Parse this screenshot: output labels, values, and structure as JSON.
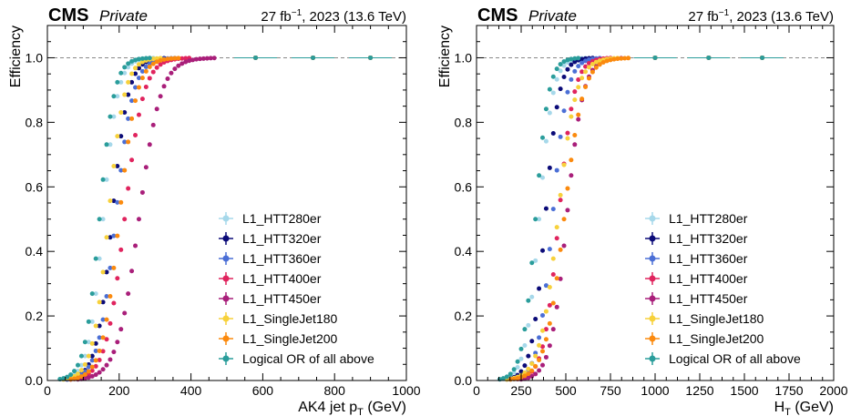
{
  "header": {
    "experiment": "CMS",
    "status": "Private",
    "lumi_value": "27",
    "lumi_unit": "fb",
    "lumi_exp": "−1",
    "lumi_rest": ", 2023 (13.6 TeV)"
  },
  "colors": {
    "L1_HTT280er": "#a6d8ea",
    "L1_HTT320er": "#0b0b78",
    "L1_HTT360er": "#4b6fd6",
    "L1_HTT400er": "#e0245e",
    "L1_HTT450er": "#a91f7a",
    "L1_SingleJet180": "#f7d13b",
    "L1_SingleJet200": "#fb8a0e",
    "Logical OR of all above": "#2a9d9b",
    "reference_line": "#888888"
  },
  "legend_labels": [
    "L1_HTT280er",
    "L1_HTT320er",
    "L1_HTT360er",
    "L1_HTT400er",
    "L1_HTT450er",
    "L1_SingleJet180",
    "L1_SingleJet200",
    "Logical OR of all above"
  ],
  "chart_data": [
    {
      "type": "scatter",
      "xlabel_main": "AK4 jet p",
      "xlabel_sub": "T",
      "xlabel_unit": " (GeV)",
      "ylabel": "Efficiency",
      "xlim": [
        0,
        1000
      ],
      "ylim": [
        0,
        1.1
      ],
      "xticks": [
        0,
        200,
        400,
        600,
        800,
        1000
      ],
      "yticks": [
        0.0,
        0.2,
        0.4,
        0.6,
        0.8,
        1.0
      ],
      "reference_line": 1.0,
      "legend_position": "lower-right",
      "grid": false,
      "tail_x": [
        580,
        740,
        900
      ],
      "series": [
        {
          "name": "L1_HTT280er",
          "x50": 155,
          "width": 20
        },
        {
          "name": "L1_HTT320er",
          "x50": 180,
          "width": 22
        },
        {
          "name": "L1_HTT360er",
          "x50": 190,
          "width": 24
        },
        {
          "name": "L1_HTT400er",
          "x50": 215,
          "width": 26
        },
        {
          "name": "L1_HTT450er",
          "x50": 255,
          "width": 30
        },
        {
          "name": "L1_SingleJet180",
          "x50": 170,
          "width": 22
        },
        {
          "name": "L1_SingleJet200",
          "x50": 200,
          "width": 24
        },
        {
          "name": "Logical OR of all above",
          "x50": 145,
          "width": 20
        }
      ]
    },
    {
      "type": "scatter",
      "xlabel_main": "H",
      "xlabel_sub": "T",
      "xlabel_unit": " (GeV)",
      "ylabel": "Efficiency",
      "xlim": [
        0,
        2000
      ],
      "ylim": [
        0,
        1.1
      ],
      "xticks": [
        0,
        250,
        500,
        750,
        1000,
        1250,
        1500,
        1750,
        2000
      ],
      "yticks": [
        0.0,
        0.2,
        0.4,
        0.6,
        0.8,
        1.0
      ],
      "reference_line": 1.0,
      "legend_position": "lower-right",
      "grid": false,
      "tail_x": [
        1000,
        1300,
        1600
      ],
      "series": [
        {
          "name": "L1_HTT280er",
          "x50": 350,
          "width": 38
        },
        {
          "name": "L1_HTT320er",
          "x50": 385,
          "width": 38
        },
        {
          "name": "L1_HTT360er",
          "x50": 425,
          "width": 40
        },
        {
          "name": "L1_HTT400er",
          "x50": 460,
          "width": 42
        },
        {
          "name": "L1_HTT450er",
          "x50": 505,
          "width": 45
        },
        {
          "name": "L1_SingleJet180",
          "x50": 455,
          "width": 50
        },
        {
          "name": "L1_SingleJet200",
          "x50": 490,
          "width": 52
        },
        {
          "name": "Logical OR of all above",
          "x50": 330,
          "width": 36
        }
      ]
    }
  ]
}
